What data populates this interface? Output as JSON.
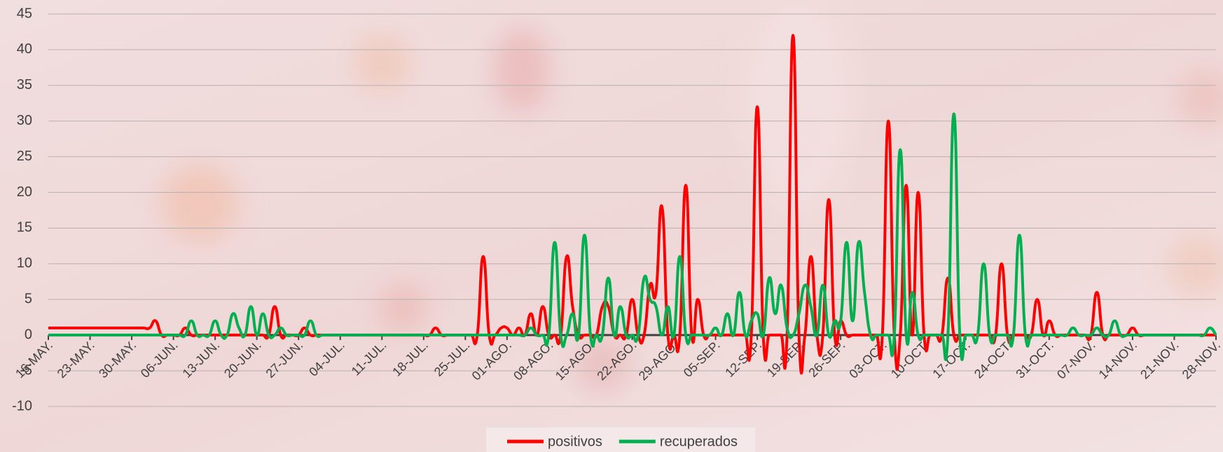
{
  "chart_data": {
    "type": "line",
    "categories": [
      "16-MAY.",
      null,
      null,
      null,
      null,
      null,
      null,
      "23-MAY.",
      null,
      null,
      null,
      null,
      null,
      null,
      "30-MAY.",
      null,
      null,
      null,
      null,
      null,
      null,
      "06-JUN.",
      null,
      null,
      null,
      null,
      null,
      null,
      "13-JUN.",
      null,
      null,
      null,
      null,
      null,
      null,
      "20-JUN.",
      null,
      null,
      null,
      null,
      null,
      null,
      "27-JUN.",
      null,
      null,
      null,
      null,
      null,
      null,
      "04-JUL.",
      null,
      null,
      null,
      null,
      null,
      null,
      "11-JUL.",
      null,
      null,
      null,
      null,
      null,
      null,
      "18-JUL.",
      null,
      null,
      null,
      null,
      null,
      null,
      "25-JUL.",
      null,
      null,
      null,
      null,
      null,
      null,
      "01-AGO.",
      null,
      null,
      null,
      null,
      null,
      null,
      "08-AGO.",
      null,
      null,
      null,
      null,
      null,
      null,
      "15-AGO.",
      null,
      null,
      null,
      null,
      null,
      null,
      "22-AGO.",
      null,
      null,
      null,
      null,
      null,
      null,
      "29-AGO.",
      null,
      null,
      null,
      null,
      null,
      null,
      "05-SEP.",
      null,
      null,
      null,
      null,
      null,
      null,
      "12-SEP.",
      null,
      null,
      null,
      null,
      null,
      null,
      "19-SEP.",
      null,
      null,
      null,
      null,
      null,
      null,
      "26-SEP.",
      null,
      null,
      null,
      null,
      null,
      null,
      "03-OCT.",
      null,
      null,
      null,
      null,
      null,
      null,
      "10-OCT.",
      null,
      null,
      null,
      null,
      null,
      null,
      "17-OCT.",
      null,
      null,
      null,
      null,
      null,
      null,
      "24-OCT.",
      null,
      null,
      null,
      null,
      null,
      null,
      "31-OCT.",
      null,
      null,
      null,
      null,
      null,
      null,
      "07-NOV.",
      null,
      null,
      null,
      null,
      null,
      null,
      "14-NOV.",
      null,
      null,
      null,
      null,
      null,
      null,
      "21-NOV.",
      null,
      null,
      null,
      null,
      null,
      null,
      "28-NOV."
    ],
    "series": [
      {
        "name": "positivos",
        "color": "#ff0000",
        "values": [
          1,
          1,
          1,
          1,
          1,
          1,
          1,
          1,
          1,
          1,
          1,
          1,
          1,
          1,
          1,
          1,
          1,
          1,
          2,
          0,
          0,
          0,
          0,
          1,
          0,
          0,
          0,
          0,
          0,
          0,
          0,
          0,
          0,
          0,
          0,
          0,
          0,
          0,
          4,
          0,
          0,
          0,
          0,
          1,
          0,
          0,
          0,
          0,
          0,
          0,
          0,
          0,
          0,
          0,
          0,
          0,
          0,
          0,
          0,
          0,
          0,
          0,
          0,
          0,
          0,
          1,
          0,
          0,
          0,
          0,
          0,
          0,
          0,
          11,
          0,
          0,
          1,
          1,
          0,
          1,
          0,
          3,
          0,
          4,
          0,
          0,
          0,
          11,
          4,
          0,
          0,
          0,
          0,
          4,
          4,
          0,
          0,
          0,
          5,
          0,
          0,
          7,
          6,
          18,
          0,
          0,
          0,
          21,
          0,
          5,
          0,
          0,
          0,
          0,
          0,
          0,
          0,
          0,
          0,
          32,
          0,
          0,
          0,
          0,
          0,
          42,
          0,
          0,
          11,
          0,
          0,
          19,
          0,
          2,
          0,
          0,
          0,
          0,
          0,
          0,
          0,
          30,
          0,
          0,
          21,
          0,
          20,
          0,
          0,
          0,
          0,
          8,
          0,
          0,
          0,
          0,
          0,
          0,
          0,
          0,
          10,
          0,
          0,
          0,
          0,
          0,
          5,
          0,
          2,
          0,
          0,
          0,
          0,
          0,
          0,
          0,
          6,
          0,
          0,
          0,
          0,
          0,
          1,
          0,
          0,
          0,
          0,
          0,
          0,
          0,
          0,
          0,
          0,
          0,
          0,
          0,
          0
        ]
      },
      {
        "name": "recuperados",
        "color": "#00b050",
        "values": [
          0,
          0,
          0,
          0,
          0,
          0,
          0,
          0,
          0,
          0,
          0,
          0,
          0,
          0,
          0,
          0,
          0,
          0,
          0,
          0,
          0,
          0,
          0,
          0,
          2,
          0,
          0,
          0,
          2,
          0,
          0,
          3,
          1,
          0,
          4,
          0,
          3,
          0,
          0,
          1,
          0,
          0,
          0,
          0,
          2,
          0,
          0,
          0,
          0,
          0,
          0,
          0,
          0,
          0,
          0,
          0,
          0,
          0,
          0,
          0,
          0,
          0,
          0,
          0,
          0,
          0,
          0,
          0,
          0,
          0,
          0,
          0,
          0,
          0,
          0,
          0,
          0,
          0,
          0,
          0,
          0,
          1,
          0,
          0,
          0,
          13,
          0,
          0,
          3,
          0,
          14,
          0,
          0,
          0,
          8,
          0,
          4,
          0,
          0,
          0,
          8,
          5,
          4,
          0,
          4,
          0,
          11,
          0,
          0,
          0,
          0,
          0,
          1,
          0,
          3,
          0,
          6,
          0,
          2,
          3,
          0,
          8,
          3,
          7,
          1,
          0,
          3,
          7,
          4,
          0,
          7,
          0,
          2,
          2,
          13,
          2,
          13,
          6,
          0,
          0,
          0,
          0,
          0,
          26,
          0,
          6,
          0,
          0,
          0,
          0,
          0,
          0,
          31,
          0,
          0,
          0,
          0,
          10,
          0,
          0,
          0,
          0,
          0,
          14,
          0,
          0,
          0,
          0,
          0,
          0,
          0,
          0,
          1,
          0,
          0,
          0,
          1,
          0,
          0,
          2,
          0,
          0,
          0,
          0,
          0,
          0,
          0,
          0,
          0,
          0,
          0,
          0,
          0,
          0,
          0,
          1,
          0
        ]
      }
    ],
    "ylim": [
      -10,
      45
    ],
    "yticks": [
      -10,
      -5,
      0,
      5,
      10,
      15,
      20,
      25,
      30,
      35,
      40,
      45
    ],
    "grid": true,
    "legend": "bottom"
  }
}
